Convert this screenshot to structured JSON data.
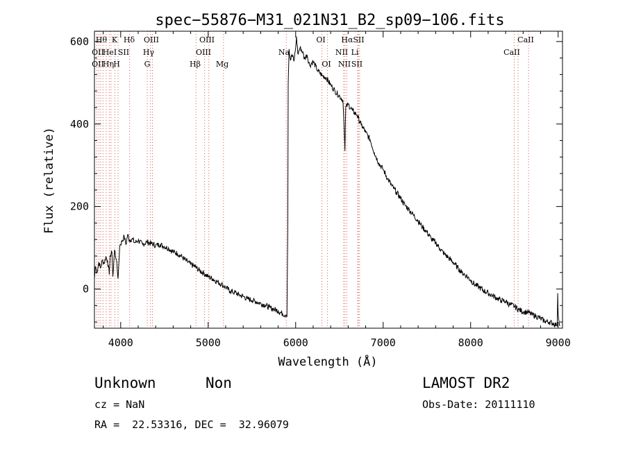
{
  "chart_data": {
    "type": "line",
    "title": "spec−55876−M31_021N31_B2_sp09−106.fits",
    "xlabel": "Wavelength (Å)",
    "ylabel": "Flux (relative)",
    "xlim": [
      3700,
      9050
    ],
    "ylim": [
      -95,
      625
    ],
    "xticks": [
      4000,
      5000,
      6000,
      7000,
      8000,
      9000
    ],
    "xtick_labels": [
      "4000",
      "5000",
      "6000",
      "7000",
      "8000",
      "9000"
    ],
    "yticks": [
      0,
      200,
      400,
      600
    ],
    "ytick_labels": [
      "0",
      "200",
      "400",
      "600"
    ],
    "grid": false,
    "line_color": "#000000",
    "series": [
      {
        "points": [
          [
            3700,
            25
          ],
          [
            3710,
            55
          ],
          [
            3730,
            40
          ],
          [
            3750,
            65
          ],
          [
            3770,
            50
          ],
          [
            3790,
            70
          ],
          [
            3810,
            62
          ],
          [
            3830,
            78
          ],
          [
            3850,
            68
          ],
          [
            3870,
            35
          ],
          [
            3880,
            82
          ],
          [
            3900,
            88
          ],
          [
            3910,
            30
          ],
          [
            3930,
            95
          ],
          [
            3950,
            72
          ],
          [
            3970,
            25
          ],
          [
            3990,
            105
          ],
          [
            4020,
            118
          ],
          [
            4040,
            128
          ],
          [
            4060,
            108
          ],
          [
            4080,
            132
          ],
          [
            4100,
            118
          ],
          [
            4130,
            122
          ],
          [
            4160,
            112
          ],
          [
            4200,
            118
          ],
          [
            4250,
            108
          ],
          [
            4300,
            114
          ],
          [
            4350,
            110
          ],
          [
            4400,
            106
          ],
          [
            4450,
            108
          ],
          [
            4500,
            103
          ],
          [
            4550,
            98
          ],
          [
            4600,
            90
          ],
          [
            4650,
            86
          ],
          [
            4700,
            78
          ],
          [
            4750,
            68
          ],
          [
            4800,
            60
          ],
          [
            4850,
            54
          ],
          [
            4900,
            45
          ],
          [
            4950,
            38
          ],
          [
            5000,
            30
          ],
          [
            5050,
            25
          ],
          [
            5100,
            18
          ],
          [
            5150,
            12
          ],
          [
            5200,
            4
          ],
          [
            5250,
            -5
          ],
          [
            5300,
            -8
          ],
          [
            5350,
            -14
          ],
          [
            5400,
            -18
          ],
          [
            5450,
            -24
          ],
          [
            5500,
            -27
          ],
          [
            5550,
            -31
          ],
          [
            5600,
            -35
          ],
          [
            5650,
            -39
          ],
          [
            5700,
            -45
          ],
          [
            5750,
            -49
          ],
          [
            5800,
            -53
          ],
          [
            5850,
            -60
          ],
          [
            5890,
            -63
          ],
          [
            5900,
            -68
          ],
          [
            5910,
            150
          ],
          [
            5915,
            498
          ],
          [
            5925,
            582
          ],
          [
            5940,
            555
          ],
          [
            5960,
            568
          ],
          [
            5980,
            552
          ],
          [
            6000,
            585
          ],
          [
            6010,
            612
          ],
          [
            6025,
            570
          ],
          [
            6050,
            585
          ],
          [
            6080,
            575
          ],
          [
            6100,
            558
          ],
          [
            6130,
            568
          ],
          [
            6160,
            542
          ],
          [
            6200,
            552
          ],
          [
            6250,
            530
          ],
          [
            6300,
            518
          ],
          [
            6350,
            512
          ],
          [
            6400,
            495
          ],
          [
            6450,
            480
          ],
          [
            6500,
            468
          ],
          [
            6540,
            458
          ],
          [
            6556,
            380
          ],
          [
            6563,
            335
          ],
          [
            6572,
            440
          ],
          [
            6600,
            448
          ],
          [
            6650,
            432
          ],
          [
            6700,
            422
          ],
          [
            6750,
            398
          ],
          [
            6800,
            380
          ],
          [
            6850,
            362
          ],
          [
            6900,
            330
          ],
          [
            6950,
            305
          ],
          [
            7000,
            290
          ],
          [
            7050,
            268
          ],
          [
            7100,
            250
          ],
          [
            7150,
            235
          ],
          [
            7200,
            220
          ],
          [
            7250,
            203
          ],
          [
            7300,
            192
          ],
          [
            7350,
            178
          ],
          [
            7400,
            165
          ],
          [
            7450,
            150
          ],
          [
            7500,
            138
          ],
          [
            7550,
            122
          ],
          [
            7600,
            112
          ],
          [
            7650,
            98
          ],
          [
            7700,
            85
          ],
          [
            7750,
            75
          ],
          [
            7800,
            65
          ],
          [
            7850,
            52
          ],
          [
            7900,
            40
          ],
          [
            7950,
            32
          ],
          [
            8000,
            22
          ],
          [
            8050,
            10
          ],
          [
            8100,
            4
          ],
          [
            8150,
            -4
          ],
          [
            8200,
            -10
          ],
          [
            8250,
            -16
          ],
          [
            8300,
            -22
          ],
          [
            8350,
            -28
          ],
          [
            8400,
            -30
          ],
          [
            8450,
            -38
          ],
          [
            8500,
            -42
          ],
          [
            8550,
            -50
          ],
          [
            8600,
            -55
          ],
          [
            8650,
            -56
          ],
          [
            8700,
            -62
          ],
          [
            8750,
            -66
          ],
          [
            8800,
            -72
          ],
          [
            8850,
            -78
          ],
          [
            8900,
            -80
          ],
          [
            8950,
            -84
          ],
          [
            8980,
            -88
          ],
          [
            8990,
            -90
          ],
          [
            8995,
            -10
          ],
          [
            9000,
            -60
          ],
          [
            9020,
            -90
          ]
        ]
      }
    ],
    "lines": {
      "color": "#d9534f",
      "positions": [
        3727,
        3750,
        3771,
        3798,
        3835,
        3869,
        3889,
        3934,
        3970,
        4102,
        4304,
        4340,
        4363,
        4861,
        4959,
        5007,
        5175,
        5893,
        6300,
        6364,
        6548,
        6563,
        6584,
        6708,
        6717,
        6731,
        8498,
        8542,
        8662
      ],
      "labels_row1": [
        "Hθ",
        "K",
        "Hδ",
        "OIII",
        "OIII",
        "OI",
        "HαSII",
        "CaII"
      ],
      "labels_row2": [
        "OII",
        "HeI",
        "SII",
        "Hγ",
        "OIII",
        "Na",
        "NII",
        "Li",
        "CaII"
      ],
      "labels_row3": [
        "OII",
        "Hη",
        "H",
        "G",
        "Hβ",
        "Mg",
        "OI",
        "NII",
        "SII"
      ]
    }
  },
  "info": {
    "class": "Unknown",
    "subclass": "Non",
    "survey": "LAMOST DR2",
    "cz": "cz = NaN",
    "obs_date": "Obs-Date: 20111110",
    "coords": "RA =  22.53316, DEC =  32.96079"
  }
}
